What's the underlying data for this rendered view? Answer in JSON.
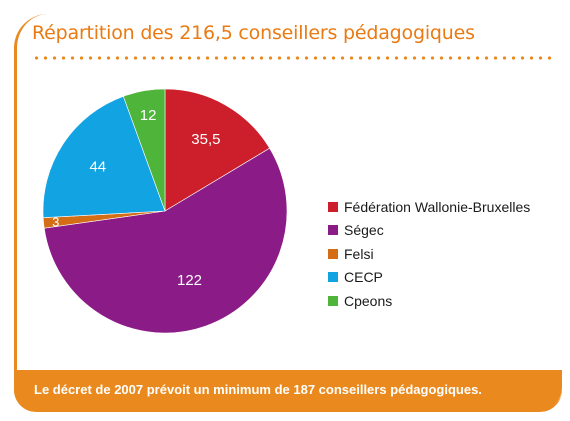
{
  "title": "Répartition des 216,5 conseillers pédagogiques",
  "note": "Le décret de 2007 prévoit un minimum de 187 conseillers pédagogiques.",
  "chart_data": {
    "type": "pie",
    "total": 216.5,
    "categories": [
      "Fédération Wallonie-Bruxelles",
      "Ségec",
      "Felsi",
      "CECP",
      "Cpeons"
    ],
    "values": [
      35.5,
      122,
      3,
      44,
      12
    ],
    "value_labels": [
      "35,5",
      "122",
      "3",
      "44",
      "12"
    ],
    "colors": [
      "#cc1f2b",
      "#8b1b86",
      "#d36d16",
      "#12a3e3",
      "#4fb43a"
    ],
    "legend_position": "right"
  }
}
